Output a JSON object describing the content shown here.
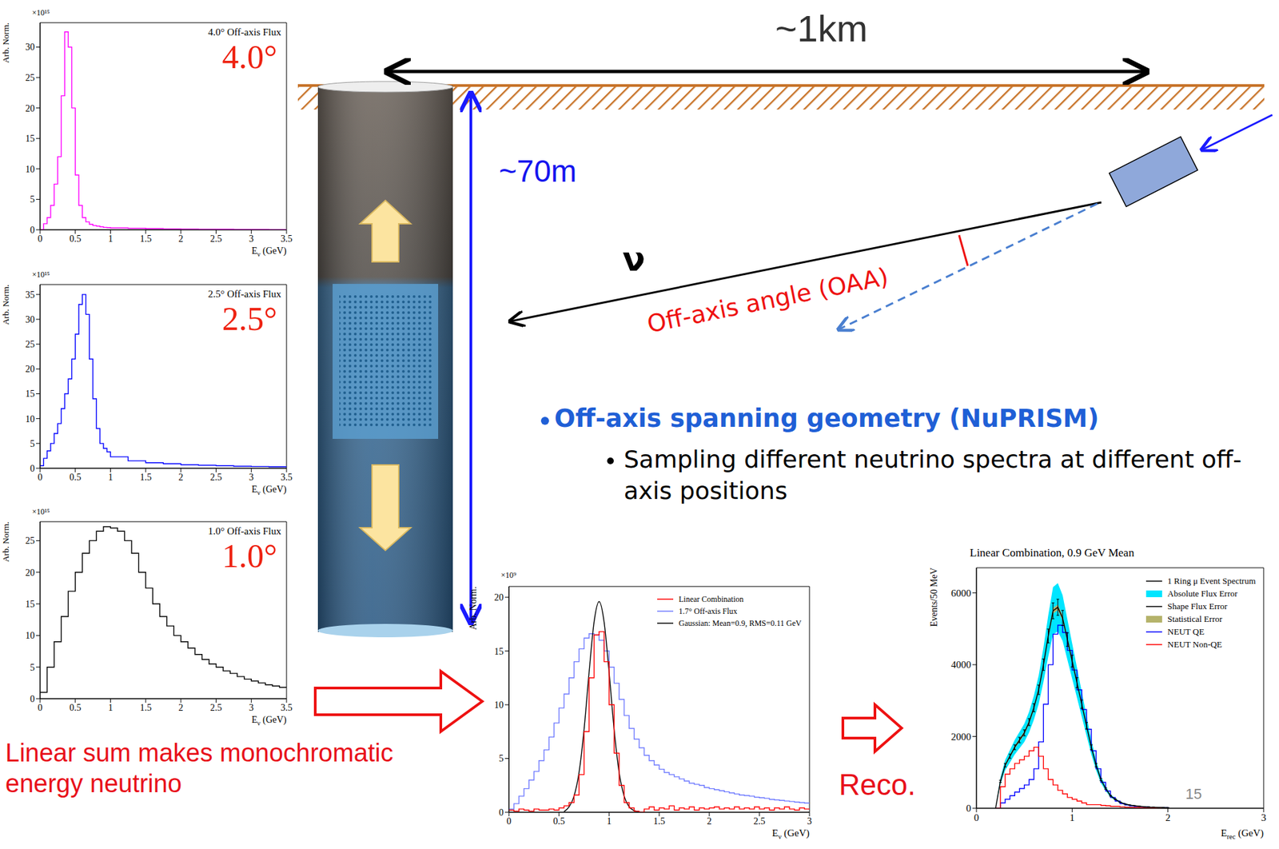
{
  "diagram": {
    "distance_label": "~1km",
    "depth_label": "~70m",
    "neutrino_label": "ν",
    "angle_label": "Off-axis angle (OAA)",
    "bullet": "Off-axis spanning geometry (NuPRISM)",
    "sub_bullet": "Sampling different neutrino spectra at different off-axis positions",
    "sum_label": "Linear sum makes monochromatic energy neutrino",
    "reco_label": "Reco.",
    "page_number": "15"
  },
  "chart_data": [
    {
      "type": "histogram",
      "title": "4.0° Off-axis Flux",
      "angle_label": "4.0°",
      "y_label": "Arb. Norm.",
      "x_label": "Eν (GeV)",
      "y_multiplier": "×10¹⁵",
      "color": "#ff00ff",
      "bins": [
        0,
        0.05,
        0.1,
        0.15,
        0.2,
        0.25,
        0.3,
        0.35,
        0.4,
        0.45,
        0.5,
        0.55,
        0.6,
        0.65,
        0.7,
        0.75,
        0.8,
        0.85,
        0.9,
        0.95,
        1,
        1.25,
        1.5,
        1.75,
        2,
        2.25,
        2.5,
        2.75,
        3,
        3.25,
        3.5
      ],
      "counts": [
        0,
        1,
        2,
        4,
        7.5,
        12,
        22,
        32.5,
        30,
        20,
        9,
        4,
        2,
        1.3,
        0.9,
        0.7,
        0.6,
        0.5,
        0.4,
        0.35,
        0.3,
        0.25,
        0.2,
        0.15,
        0.12,
        0.1,
        0.08,
        0.06,
        0.05,
        0.04
      ],
      "xlim": [
        0,
        3.5
      ],
      "xticks": [
        0,
        0.5,
        1,
        1.5,
        2,
        2.5,
        3,
        3.5
      ],
      "ylim": [
        0,
        34
      ],
      "yticks": [
        0,
        5,
        10,
        15,
        20,
        25,
        30
      ]
    },
    {
      "type": "histogram",
      "title": "2.5° Off-axis Flux",
      "angle_label": "2.5°",
      "y_label": "Arb. Norm.",
      "x_label": "Eν (GeV)",
      "y_multiplier": "×10¹⁵",
      "color": "#0000ff",
      "bins": [
        0,
        0.05,
        0.1,
        0.15,
        0.2,
        0.25,
        0.3,
        0.35,
        0.4,
        0.45,
        0.5,
        0.55,
        0.6,
        0.65,
        0.7,
        0.75,
        0.8,
        0.85,
        0.9,
        0.95,
        1,
        1.25,
        1.5,
        1.75,
        2,
        2.25,
        2.5,
        2.75,
        3,
        3.25,
        3.5
      ],
      "counts": [
        0.5,
        2,
        3.5,
        5,
        7,
        9,
        12,
        15,
        18,
        22,
        27,
        33,
        35,
        31,
        22,
        14,
        8,
        5,
        4,
        3.3,
        2.3,
        1.5,
        1.1,
        0.9,
        0.7,
        0.6,
        0.5,
        0.4,
        0.35,
        0.3
      ],
      "xlim": [
        0,
        3.5
      ],
      "xticks": [
        0,
        0.5,
        1,
        1.5,
        2,
        2.5,
        3,
        3.5
      ],
      "ylim": [
        0,
        37
      ],
      "yticks": [
        0,
        5,
        10,
        15,
        20,
        25,
        30,
        35
      ]
    },
    {
      "type": "histogram",
      "title": "1.0° Off-axis Flux",
      "angle_label": "1.0°",
      "y_label": "Arb. Norm.",
      "x_label": "Eν (GeV)",
      "y_multiplier": "×10¹⁵",
      "color": "#000000",
      "bins": [
        0,
        0.1,
        0.2,
        0.3,
        0.4,
        0.5,
        0.6,
        0.7,
        0.8,
        0.9,
        1,
        1.1,
        1.2,
        1.3,
        1.4,
        1.5,
        1.6,
        1.7,
        1.8,
        1.9,
        2,
        2.1,
        2.2,
        2.3,
        2.4,
        2.5,
        2.6,
        2.7,
        2.8,
        2.9,
        3,
        3.1,
        3.2,
        3.3,
        3.4,
        3.5
      ],
      "counts": [
        1,
        5,
        9,
        13,
        17,
        20,
        23,
        25,
        26.5,
        27.2,
        27,
        26.5,
        25,
        23,
        20,
        17.5,
        15,
        13,
        11.5,
        10,
        9,
        8,
        7,
        6.2,
        5.5,
        5,
        4.4,
        4,
        3.5,
        3.1,
        2.8,
        2.5,
        2.2,
        2,
        1.8
      ],
      "xlim": [
        0,
        3.5
      ],
      "xticks": [
        0,
        0.5,
        1,
        1.5,
        2,
        2.5,
        3,
        3.5
      ],
      "ylim": [
        0,
        28
      ],
      "yticks": [
        0,
        5,
        10,
        15,
        20,
        25
      ]
    },
    {
      "type": "line",
      "y_label": "Arb. Norm.",
      "x_label": "Eν (GeV)",
      "y_multiplier": "×10⁹",
      "legend": "top-right",
      "x": [
        0,
        0.05,
        0.1,
        0.15,
        0.2,
        0.25,
        0.3,
        0.35,
        0.4,
        0.45,
        0.5,
        0.55,
        0.6,
        0.65,
        0.7,
        0.75,
        0.8,
        0.85,
        0.9,
        0.95,
        1,
        1.05,
        1.1,
        1.15,
        1.2,
        1.25,
        1.3,
        1.35,
        1.4,
        1.45,
        1.5,
        1.55,
        1.6,
        1.65,
        1.7,
        1.75,
        1.8,
        1.85,
        1.9,
        1.95,
        2,
        2.05,
        2.1,
        2.15,
        2.2,
        2.25,
        2.3,
        2.35,
        2.4,
        2.45,
        2.5,
        2.55,
        2.6,
        2.65,
        2.7,
        2.75,
        2.8,
        2.85,
        2.9,
        2.95,
        3
      ],
      "series": [
        {
          "name": "Linear Combination",
          "color": "#ff0000",
          "line_style": "step",
          "values": [
            0.2,
            0.1,
            0.3,
            0.2,
            0.1,
            0.3,
            0.2,
            0.2,
            0.3,
            0.2,
            0.4,
            0.6,
            0.9,
            1.6,
            3.5,
            7.5,
            12.5,
            16.5,
            16.8,
            14,
            10,
            5.5,
            2.5,
            0.9,
            0.4,
            0.1,
            0,
            0.3,
            0.5,
            0.2,
            0.4,
            0.3,
            0.6,
            0.2,
            0.4,
            0.3,
            0.5,
            0.2,
            0.4,
            0.3,
            0.4,
            0.5,
            0.3,
            0.4,
            0.3,
            0.5,
            0.3,
            0.4,
            0.3,
            0.5,
            0.3,
            0.4,
            0.2,
            0.4,
            0.3,
            0.5,
            0.3,
            0.2,
            0.4,
            0.3,
            0.3
          ]
        },
        {
          "name": "1.7° Off-axis Flux",
          "color": "#6f7bff",
          "line_style": "step",
          "values": [
            0.3,
            0.8,
            1.5,
            2.2,
            3,
            3.8,
            4.8,
            5.8,
            7,
            8.3,
            9.7,
            11,
            12.5,
            14,
            15.2,
            16.2,
            16.6,
            16.5,
            16,
            15,
            13.5,
            12,
            10.5,
            9,
            7.8,
            6.8,
            6,
            5.3,
            4.8,
            4.4,
            4,
            3.7,
            3.5,
            3.3,
            3.1,
            2.9,
            2.7,
            2.6,
            2.5,
            2.3,
            2.2,
            2.1,
            2,
            1.9,
            1.8,
            1.7,
            1.6,
            1.55,
            1.5,
            1.4,
            1.35,
            1.3,
            1.2,
            1.15,
            1.1,
            1.05,
            1,
            0.95,
            0.9,
            0.85,
            0.85
          ]
        },
        {
          "name": "Gaussian: Mean=0.9, RMS=0.11 GeV",
          "color": "#000000",
          "line_style": "smooth",
          "values": [
            null,
            null,
            null,
            null,
            null,
            null,
            null,
            null,
            null,
            null,
            null,
            0.05,
            0.5,
            1.5,
            3.7,
            7.7,
            13,
            17.7,
            19.6,
            17.7,
            13,
            7.7,
            3.7,
            1.5,
            0.5,
            0.14,
            0.03,
            null,
            null,
            null,
            null,
            null,
            null,
            null,
            null,
            null,
            null,
            null,
            null,
            null,
            null,
            null,
            null,
            null,
            null,
            null,
            null,
            null,
            null,
            null,
            null,
            null,
            null,
            null,
            null,
            null,
            null,
            null,
            null,
            null,
            null
          ]
        }
      ],
      "xlim": [
        0,
        3
      ],
      "xticks": [
        0,
        0.5,
        1,
        1.5,
        2,
        2.5,
        3
      ],
      "ylim": [
        0,
        21
      ],
      "yticks": [
        0,
        5,
        10,
        15,
        20
      ]
    },
    {
      "type": "line",
      "title": "Linear Combination, 0.9 GeV Mean",
      "y_label": "Events/50 MeV",
      "x_label": "Erec (GeV)",
      "legend": "top-right",
      "x": [
        0.2,
        0.25,
        0.3,
        0.35,
        0.4,
        0.45,
        0.5,
        0.55,
        0.6,
        0.65,
        0.7,
        0.75,
        0.8,
        0.85,
        0.9,
        0.95,
        1,
        1.05,
        1.1,
        1.15,
        1.2,
        1.25,
        1.3,
        1.35,
        1.4,
        1.45,
        1.5,
        1.55,
        1.6,
        1.65,
        1.7,
        1.75,
        1.8,
        1.85,
        1.9,
        1.95,
        2
      ],
      "series": [
        {
          "name": "1 Ring μ Event Spectrum",
          "color": "#000000",
          "line_style": "solid",
          "values": [
            0,
            750,
            1200,
            1450,
            1700,
            1900,
            2100,
            2400,
            2800,
            3300,
            4000,
            4800,
            5500,
            5600,
            5300,
            4700,
            4100,
            3500,
            2900,
            2300,
            1700,
            1200,
            800,
            550,
            350,
            250,
            170,
            120,
            90,
            70,
            55,
            45,
            35,
            30,
            25,
            20,
            15
          ]
        },
        {
          "name": "Absolute Flux Error",
          "color": "#00e5ff",
          "type": "band",
          "errors": [
            0,
            90,
            144,
            174,
            204,
            228,
            252,
            288,
            336,
            396,
            480,
            576,
            660,
            672,
            636,
            564,
            492,
            420,
            348,
            276,
            204,
            144,
            96,
            66,
            42,
            30,
            20,
            14,
            11,
            8,
            7,
            5,
            4,
            4,
            3,
            2,
            2
          ]
        },
        {
          "name": "Shape Flux Error",
          "color": "#000000",
          "type": "errorbar",
          "errors": [
            0,
            30,
            48,
            58,
            68,
            76,
            84,
            96,
            112,
            132,
            160,
            192,
            220,
            224,
            212,
            188,
            164,
            140,
            116,
            92,
            68,
            48,
            32,
            22,
            14,
            10,
            7,
            5,
            4,
            3,
            2,
            2,
            1,
            1,
            1,
            1,
            1
          ]
        },
        {
          "name": "Statistical Error",
          "color": "#b5b36b",
          "type": "band",
          "errors": [
            0,
            27,
            35,
            38,
            41,
            44,
            46,
            49,
            53,
            57,
            63,
            69,
            74,
            75,
            73,
            69,
            64,
            59,
            54,
            48,
            41,
            35,
            28,
            23,
            19,
            16,
            13,
            11,
            9,
            8,
            7,
            7,
            6,
            5,
            5,
            4,
            4
          ]
        },
        {
          "name": "NEUT QE",
          "color": "#0000ff",
          "line_style": "step",
          "values": [
            0,
            150,
            250,
            350,
            450,
            550,
            650,
            800,
            1100,
            1850,
            2900,
            4000,
            4850,
            5100,
            4900,
            4400,
            3850,
            3300,
            2750,
            2200,
            1600,
            1100,
            720,
            480,
            300,
            200,
            130,
            90,
            65,
            50,
            40,
            32,
            25,
            20,
            17,
            13,
            10
          ]
        },
        {
          "name": "NEUT Non-QE",
          "color": "#ff0000",
          "line_style": "step",
          "values": [
            0,
            600,
            950,
            1100,
            1250,
            1350,
            1450,
            1600,
            1700,
            1450,
            1100,
            800,
            650,
            500,
            400,
            300,
            250,
            200,
            150,
            100,
            100,
            100,
            80,
            70,
            50,
            50,
            40,
            30,
            25,
            20,
            15,
            13,
            10,
            10,
            8,
            7,
            5
          ]
        }
      ],
      "xlim": [
        0,
        3
      ],
      "xticks": [
        0,
        1,
        2,
        3
      ],
      "ylim": [
        0,
        6700
      ],
      "yticks": [
        0,
        2000,
        4000,
        6000
      ]
    }
  ]
}
